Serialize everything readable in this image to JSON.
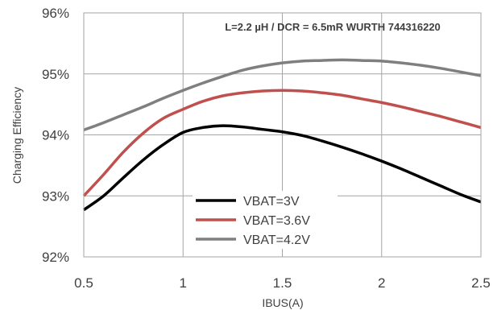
{
  "chart_data": {
    "type": "line",
    "title": "",
    "annotation": "L=2.2 µH / DCR = 6.5mR WURTH 744316220",
    "xlabel": "IBUS(A)",
    "ylabel": "Charging Efficiency",
    "xlim": [
      0.5,
      2.5
    ],
    "ylim": [
      92,
      96
    ],
    "x_ticks": [
      0.5,
      1,
      1.5,
      2,
      2.5
    ],
    "x_tick_labels": [
      "0.5",
      "1",
      "1.5",
      "2",
      "2.5"
    ],
    "y_ticks": [
      92,
      93,
      94,
      95,
      96
    ],
    "y_tick_labels": [
      "92%",
      "93%",
      "94%",
      "95%",
      "96%"
    ],
    "grid": true,
    "legend_position": "bottom-center",
    "series": [
      {
        "name": "VBAT=3V",
        "color": "#000000",
        "x": [
          0.5,
          0.6,
          0.7,
          0.8,
          0.9,
          1.0,
          1.1,
          1.2,
          1.3,
          1.4,
          1.5,
          1.6,
          1.7,
          1.8,
          1.9,
          2.0,
          2.1,
          2.2,
          2.3,
          2.4,
          2.5
        ],
        "values": [
          92.77,
          93.0,
          93.3,
          93.59,
          93.84,
          94.04,
          94.12,
          94.15,
          94.13,
          94.09,
          94.05,
          93.99,
          93.9,
          93.8,
          93.69,
          93.57,
          93.44,
          93.3,
          93.16,
          93.02,
          92.9
        ]
      },
      {
        "name": "VBAT=3.6V",
        "color": "#c0504d",
        "x": [
          0.5,
          0.6,
          0.7,
          0.8,
          0.9,
          1.0,
          1.1,
          1.2,
          1.3,
          1.4,
          1.5,
          1.6,
          1.7,
          1.8,
          1.9,
          2.0,
          2.1,
          2.2,
          2.3,
          2.4,
          2.5
        ],
        "values": [
          93.0,
          93.35,
          93.72,
          94.03,
          94.27,
          94.42,
          94.55,
          94.64,
          94.69,
          94.72,
          94.73,
          94.72,
          94.69,
          94.65,
          94.59,
          94.53,
          94.46,
          94.38,
          94.3,
          94.21,
          94.12
        ]
      },
      {
        "name": "VBAT=4.2V",
        "color": "#7f7f7f",
        "x": [
          0.5,
          0.6,
          0.7,
          0.8,
          0.9,
          1.0,
          1.1,
          1.2,
          1.3,
          1.4,
          1.5,
          1.6,
          1.7,
          1.8,
          1.9,
          2.0,
          2.1,
          2.2,
          2.3,
          2.4,
          2.5
        ],
        "values": [
          94.08,
          94.2,
          94.33,
          94.46,
          94.6,
          94.73,
          94.85,
          94.96,
          95.06,
          95.13,
          95.18,
          95.21,
          95.22,
          95.23,
          95.22,
          95.21,
          95.18,
          95.14,
          95.09,
          95.03,
          94.97
        ]
      }
    ]
  }
}
